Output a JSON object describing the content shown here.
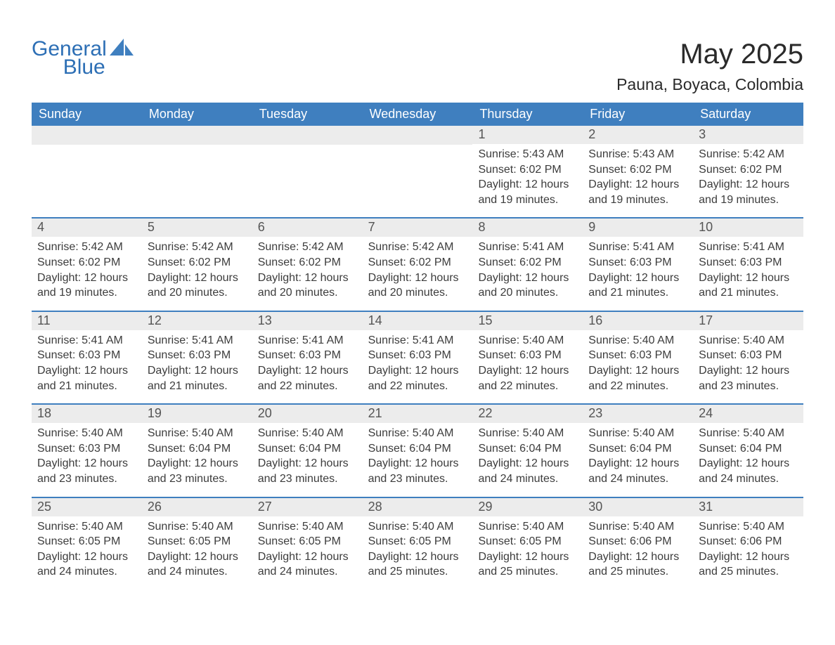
{
  "logo": {
    "word1": "General",
    "word2": "Blue"
  },
  "title": "May 2025",
  "location": "Pauna, Boyaca, Colombia",
  "colors": {
    "brand": "#3f7fbf",
    "logo_text": "#2d6fb5",
    "header_text": "#2a2a2a",
    "body_text": "#3c3c3c",
    "daynum_bg": "#ececec",
    "page_bg": "#ffffff"
  },
  "weekdays": [
    "Sunday",
    "Monday",
    "Tuesday",
    "Wednesday",
    "Thursday",
    "Friday",
    "Saturday"
  ],
  "weeks": [
    [
      null,
      null,
      null,
      null,
      {
        "n": "1",
        "sunrise": "5:43 AM",
        "sunset": "6:02 PM",
        "daylight": "12 hours and 19 minutes."
      },
      {
        "n": "2",
        "sunrise": "5:43 AM",
        "sunset": "6:02 PM",
        "daylight": "12 hours and 19 minutes."
      },
      {
        "n": "3",
        "sunrise": "5:42 AM",
        "sunset": "6:02 PM",
        "daylight": "12 hours and 19 minutes."
      }
    ],
    [
      {
        "n": "4",
        "sunrise": "5:42 AM",
        "sunset": "6:02 PM",
        "daylight": "12 hours and 19 minutes."
      },
      {
        "n": "5",
        "sunrise": "5:42 AM",
        "sunset": "6:02 PM",
        "daylight": "12 hours and 20 minutes."
      },
      {
        "n": "6",
        "sunrise": "5:42 AM",
        "sunset": "6:02 PM",
        "daylight": "12 hours and 20 minutes."
      },
      {
        "n": "7",
        "sunrise": "5:42 AM",
        "sunset": "6:02 PM",
        "daylight": "12 hours and 20 minutes."
      },
      {
        "n": "8",
        "sunrise": "5:41 AM",
        "sunset": "6:02 PM",
        "daylight": "12 hours and 20 minutes."
      },
      {
        "n": "9",
        "sunrise": "5:41 AM",
        "sunset": "6:03 PM",
        "daylight": "12 hours and 21 minutes."
      },
      {
        "n": "10",
        "sunrise": "5:41 AM",
        "sunset": "6:03 PM",
        "daylight": "12 hours and 21 minutes."
      }
    ],
    [
      {
        "n": "11",
        "sunrise": "5:41 AM",
        "sunset": "6:03 PM",
        "daylight": "12 hours and 21 minutes."
      },
      {
        "n": "12",
        "sunrise": "5:41 AM",
        "sunset": "6:03 PM",
        "daylight": "12 hours and 21 minutes."
      },
      {
        "n": "13",
        "sunrise": "5:41 AM",
        "sunset": "6:03 PM",
        "daylight": "12 hours and 22 minutes."
      },
      {
        "n": "14",
        "sunrise": "5:41 AM",
        "sunset": "6:03 PM",
        "daylight": "12 hours and 22 minutes."
      },
      {
        "n": "15",
        "sunrise": "5:40 AM",
        "sunset": "6:03 PM",
        "daylight": "12 hours and 22 minutes."
      },
      {
        "n": "16",
        "sunrise": "5:40 AM",
        "sunset": "6:03 PM",
        "daylight": "12 hours and 22 minutes."
      },
      {
        "n": "17",
        "sunrise": "5:40 AM",
        "sunset": "6:03 PM",
        "daylight": "12 hours and 23 minutes."
      }
    ],
    [
      {
        "n": "18",
        "sunrise": "5:40 AM",
        "sunset": "6:03 PM",
        "daylight": "12 hours and 23 minutes."
      },
      {
        "n": "19",
        "sunrise": "5:40 AM",
        "sunset": "6:04 PM",
        "daylight": "12 hours and 23 minutes."
      },
      {
        "n": "20",
        "sunrise": "5:40 AM",
        "sunset": "6:04 PM",
        "daylight": "12 hours and 23 minutes."
      },
      {
        "n": "21",
        "sunrise": "5:40 AM",
        "sunset": "6:04 PM",
        "daylight": "12 hours and 23 minutes."
      },
      {
        "n": "22",
        "sunrise": "5:40 AM",
        "sunset": "6:04 PM",
        "daylight": "12 hours and 24 minutes."
      },
      {
        "n": "23",
        "sunrise": "5:40 AM",
        "sunset": "6:04 PM",
        "daylight": "12 hours and 24 minutes."
      },
      {
        "n": "24",
        "sunrise": "5:40 AM",
        "sunset": "6:04 PM",
        "daylight": "12 hours and 24 minutes."
      }
    ],
    [
      {
        "n": "25",
        "sunrise": "5:40 AM",
        "sunset": "6:05 PM",
        "daylight": "12 hours and 24 minutes."
      },
      {
        "n": "26",
        "sunrise": "5:40 AM",
        "sunset": "6:05 PM",
        "daylight": "12 hours and 24 minutes."
      },
      {
        "n": "27",
        "sunrise": "5:40 AM",
        "sunset": "6:05 PM",
        "daylight": "12 hours and 24 minutes."
      },
      {
        "n": "28",
        "sunrise": "5:40 AM",
        "sunset": "6:05 PM",
        "daylight": "12 hours and 25 minutes."
      },
      {
        "n": "29",
        "sunrise": "5:40 AM",
        "sunset": "6:05 PM",
        "daylight": "12 hours and 25 minutes."
      },
      {
        "n": "30",
        "sunrise": "5:40 AM",
        "sunset": "6:06 PM",
        "daylight": "12 hours and 25 minutes."
      },
      {
        "n": "31",
        "sunrise": "5:40 AM",
        "sunset": "6:06 PM",
        "daylight": "12 hours and 25 minutes."
      }
    ]
  ],
  "labels": {
    "sunrise": "Sunrise:",
    "sunset": "Sunset:",
    "daylight": "Daylight:"
  }
}
